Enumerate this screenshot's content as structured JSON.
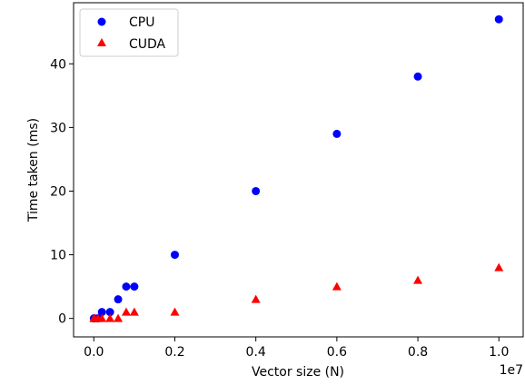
{
  "chart_data": {
    "type": "scatter",
    "title": "",
    "xlabel": "Vector size (N)",
    "ylabel": "Time taken (ms)",
    "x_offset_label": "1e7",
    "xlim": [
      -500000,
      10600000
    ],
    "ylim": [
      -2.9,
      49.6
    ],
    "xticks": [
      0,
      2000000,
      4000000,
      6000000,
      8000000,
      10000000
    ],
    "xtick_labels": [
      "0.0",
      "0.2",
      "0.4",
      "0.6",
      "0.8",
      "1.0"
    ],
    "yticks": [
      0,
      10,
      20,
      30,
      40
    ],
    "ytick_labels": [
      "0",
      "10",
      "20",
      "30",
      "40"
    ],
    "grid": false,
    "legend_position": "top-left",
    "series": [
      {
        "name": "CPU",
        "marker": "circle",
        "color": "#0000ff",
        "x": [
          1000,
          10000,
          100000,
          200000,
          400000,
          600000,
          800000,
          1000000,
          2000000,
          4000000,
          6000000,
          8000000,
          10000000
        ],
        "y": [
          0,
          0,
          0,
          1,
          1,
          3,
          5,
          5,
          10,
          20,
          29,
          38,
          47
        ]
      },
      {
        "name": "CUDA",
        "marker": "triangle",
        "color": "#ff0000",
        "x": [
          1000,
          10000,
          100000,
          200000,
          400000,
          600000,
          800000,
          1000000,
          2000000,
          4000000,
          6000000,
          8000000,
          10000000
        ],
        "y": [
          0,
          0,
          0,
          0,
          0,
          0,
          1,
          1,
          1,
          3,
          5,
          6,
          8
        ]
      }
    ]
  }
}
